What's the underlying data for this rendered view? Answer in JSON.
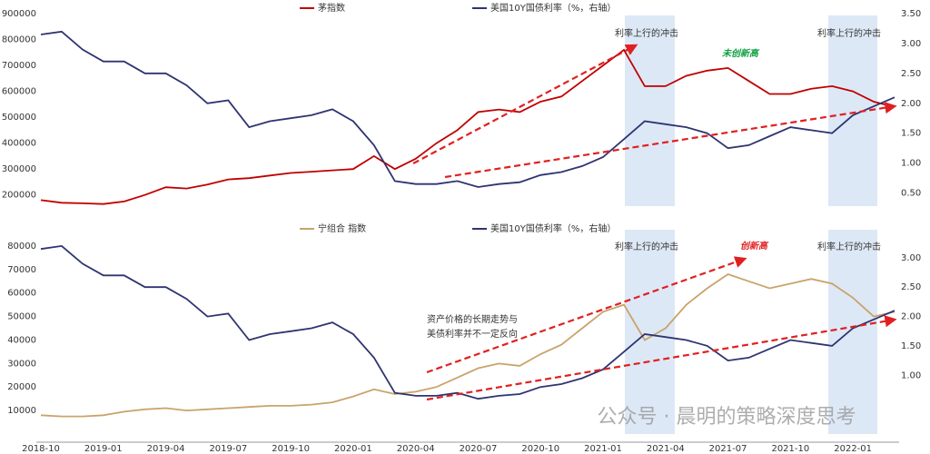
{
  "chart_data": {
    "type": "line",
    "categories": [
      "2018-10",
      null,
      null,
      "2019-01",
      null,
      null,
      "2019-04",
      null,
      null,
      "2019-07",
      null,
      null,
      "2019-10",
      null,
      null,
      "2020-01",
      null,
      null,
      "2020-04",
      null,
      null,
      "2020-07",
      null,
      null,
      "2020-10",
      null,
      null,
      "2021-01",
      null,
      null,
      "2021-04",
      null,
      null,
      "2021-07",
      null,
      null,
      "2021-10",
      null,
      null,
      "2022-01",
      null,
      null
    ],
    "watermark": "公众号 · 晨明的策略深度思考",
    "panels": [
      {
        "ylim": [
          150000,
          900000
        ],
        "yticks": [
          200000,
          300000,
          400000,
          500000,
          600000,
          700000,
          800000,
          900000
        ],
        "y2lim": [
          0.25,
          3.5
        ],
        "y2ticks": [
          {
            "value": 0.5,
            "label": "0.50"
          },
          {
            "value": 1,
            "label": "1.00"
          },
          {
            "value": 1.5,
            "label": "1.50"
          },
          {
            "value": 2,
            "label": "2.00"
          },
          {
            "value": 2.5,
            "label": "2.50"
          },
          {
            "value": 3,
            "label": "3.00"
          },
          {
            "value": 3.5,
            "label": "3.50"
          }
        ],
        "series": [
          {
            "name": "茅指数",
            "color": "#c00000",
            "values": [
              180000,
              170000,
              168000,
              165000,
              175000,
              200000,
              230000,
              225000,
              240000,
              260000,
              265000,
              275000,
              285000,
              290000,
              295000,
              300000,
              350000,
              300000,
              340000,
              400000,
              450000,
              520000,
              530000,
              520000,
              560000,
              580000,
              640000,
              700000,
              760000,
              620000,
              620000,
              660000,
              680000,
              690000,
              640000,
              590000,
              590000,
              610000,
              620000,
              600000,
              560000,
              540000
            ]
          },
          {
            "name": "美国10Y国债利率（%，右轴）",
            "color": "#2e3470",
            "axis": "y2",
            "values": [
              3.15,
              3.2,
              2.9,
              2.7,
              2.7,
              2.5,
              2.5,
              2.3,
              2.0,
              2.05,
              1.6,
              1.7,
              1.75,
              1.8,
              1.9,
              1.7,
              1.3,
              0.7,
              0.65,
              0.65,
              0.7,
              0.6,
              0.65,
              0.68,
              0.8,
              0.85,
              0.95,
              1.1,
              1.4,
              1.7,
              1.65,
              1.6,
              1.5,
              1.25,
              1.3,
              1.45,
              1.6,
              1.55,
              1.5,
              1.8,
              1.95,
              2.1
            ]
          }
        ],
        "annotations": [
          "利率上行的冲击",
          "利率上行的冲击",
          "未创新高"
        ]
      },
      {
        "ylim": [
          0,
          85000
        ],
        "yticks": [
          10000,
          20000,
          30000,
          40000,
          50000,
          60000,
          70000,
          80000
        ],
        "y2lim": [
          0,
          3.4
        ],
        "y2ticks": [
          {
            "value": 1,
            "label": "1.00"
          },
          {
            "value": 1.5,
            "label": "1.50"
          },
          {
            "value": 2,
            "label": "2.00"
          },
          {
            "value": 2.5,
            "label": "2.50"
          },
          {
            "value": 3,
            "label": "3.00"
          }
        ],
        "series": [
          {
            "name": "宁组合 指数",
            "color": "#c9a36b",
            "values": [
              8000,
              7500,
              7500,
              8000,
              9500,
              10500,
              11000,
              10000,
              10500,
              11000,
              11500,
              12000,
              12000,
              12500,
              13500,
              16000,
              19000,
              17000,
              18000,
              20000,
              24000,
              28000,
              30000,
              29000,
              34000,
              38000,
              45000,
              52000,
              55000,
              40000,
              45000,
              55000,
              62000,
              68000,
              65000,
              62000,
              64000,
              66000,
              64000,
              58000,
              50000,
              52000
            ]
          },
          {
            "name": "美国10Y国债利率（%，右轴）",
            "color": "#2e3470",
            "axis": "y2",
            "values": [
              3.15,
              3.2,
              2.9,
              2.7,
              2.7,
              2.5,
              2.5,
              2.3,
              2.0,
              2.05,
              1.6,
              1.7,
              1.75,
              1.8,
              1.9,
              1.7,
              1.3,
              0.7,
              0.65,
              0.65,
              0.7,
              0.6,
              0.65,
              0.68,
              0.8,
              0.85,
              0.95,
              1.1,
              1.4,
              1.7,
              1.65,
              1.6,
              1.5,
              1.25,
              1.3,
              1.45,
              1.6,
              1.55,
              1.5,
              1.8,
              1.95,
              2.1
            ]
          }
        ],
        "annotations": [
          "利率上行的冲击",
          "利率上行的冲击",
          "创新高",
          "资产价格的长期走势与",
          "美债利率并不一定反向"
        ]
      }
    ]
  }
}
